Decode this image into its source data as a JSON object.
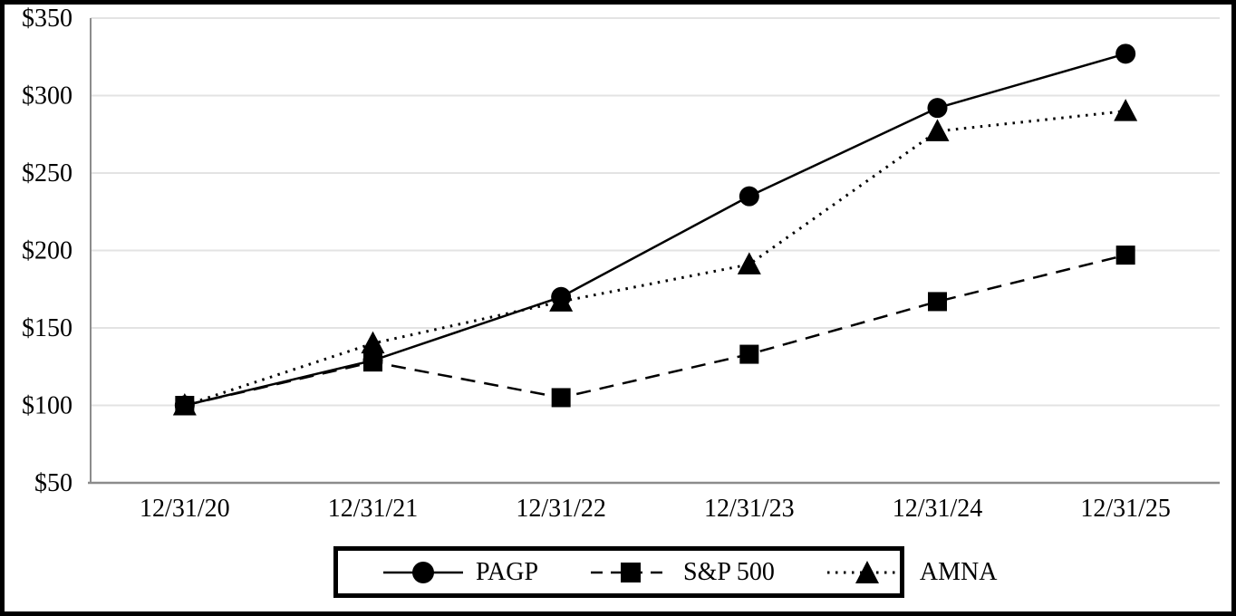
{
  "page": {
    "background_color": "#ffffff",
    "border_color": "#000000"
  },
  "chart_data": {
    "type": "line",
    "title": "",
    "xlabel": "",
    "ylabel": "",
    "categories": [
      "12/31/20",
      "12/31/21",
      "12/31/22",
      "12/31/23",
      "12/31/24",
      "12/31/25"
    ],
    "series": [
      {
        "name": "PAGP",
        "marker": "circle",
        "line_style": "solid",
        "color": "#000000",
        "values": [
          100,
          129,
          170,
          235,
          292,
          327
        ]
      },
      {
        "name": "S&P 500",
        "marker": "square",
        "line_style": "dashed",
        "color": "#000000",
        "values": [
          100,
          128,
          105,
          133,
          167,
          197
        ]
      },
      {
        "name": "AMNA",
        "marker": "triangle",
        "line_style": "dotted",
        "color": "#000000",
        "values": [
          100,
          140,
          167,
          191,
          277,
          290
        ]
      }
    ],
    "ylim": [
      50,
      350
    ],
    "y_ticks": [
      {
        "label": "$350",
        "value": 350
      },
      {
        "label": "$300",
        "value": 300
      },
      {
        "label": "$250",
        "value": 250
      },
      {
        "label": "$200",
        "value": 200
      },
      {
        "label": "$150",
        "value": 150
      },
      {
        "label": "$100",
        "value": 100
      },
      {
        "label": "$50",
        "value": 50
      }
    ],
    "grid": true,
    "legend_position": "bottom",
    "colors": {
      "series": "#000000",
      "grid": "#e3e3e3",
      "axis": "#8c8c8c",
      "text": "#000000"
    }
  }
}
